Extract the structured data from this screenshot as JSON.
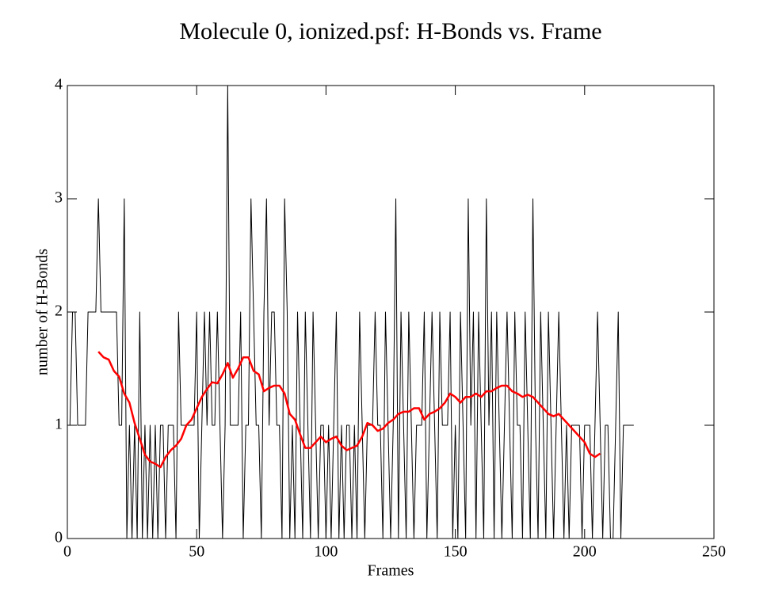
{
  "chart_data": {
    "type": "line",
    "title": "Molecule 0, ionized.psf: H-Bonds vs. Frame",
    "x_label": "Frames",
    "y_label": "number of H-Bonds",
    "xlim": [
      0,
      250
    ],
    "xticks": [
      0,
      50,
      100,
      150,
      200,
      250
    ],
    "ylim": [
      0,
      4
    ],
    "yticks": [
      0,
      1,
      2,
      3,
      4
    ],
    "series": [
      {
        "color": "#000000",
        "x": [
          0,
          1,
          2,
          3,
          4,
          5,
          6,
          7,
          8,
          9,
          10,
          11,
          12,
          13,
          14,
          15,
          16,
          17,
          18,
          19,
          20,
          21,
          22,
          23,
          24,
          25,
          26,
          27,
          28,
          29,
          30,
          31,
          32,
          33,
          34,
          35,
          36,
          37,
          38,
          39,
          40,
          41,
          42,
          43,
          44,
          45,
          46,
          47,
          48,
          49,
          50,
          51,
          52,
          53,
          54,
          55,
          56,
          57,
          58,
          59,
          60,
          61,
          62,
          63,
          64,
          65,
          66,
          67,
          68,
          69,
          70,
          71,
          72,
          73,
          74,
          75,
          76,
          77,
          78,
          79,
          80,
          81,
          82,
          83,
          84,
          85,
          86,
          87,
          88,
          89,
          90,
          91,
          92,
          93,
          94,
          95,
          96,
          97,
          98,
          99,
          100,
          101,
          102,
          103,
          104,
          105,
          106,
          107,
          108,
          109,
          110,
          111,
          112,
          113,
          114,
          115,
          116,
          117,
          118,
          119,
          120,
          121,
          122,
          123,
          124,
          125,
          126,
          127,
          128,
          129,
          130,
          131,
          132,
          133,
          134,
          135,
          136,
          137,
          138,
          139,
          140,
          141,
          142,
          143,
          144,
          145,
          146,
          147,
          148,
          149,
          150,
          151,
          152,
          153,
          154,
          155,
          156,
          157,
          158,
          159,
          160,
          161,
          162,
          163,
          164,
          165,
          166,
          167,
          168,
          169,
          170,
          171,
          172,
          173,
          174,
          175,
          176,
          177,
          178,
          179,
          180,
          181,
          182,
          183,
          184,
          185,
          186,
          187,
          188,
          189,
          190,
          191,
          192,
          193,
          194,
          195,
          196,
          197,
          198,
          199,
          200,
          201,
          202,
          203,
          204,
          205,
          206,
          207,
          208,
          209,
          210,
          211,
          212,
          213,
          214,
          215,
          216,
          217,
          218,
          219
        ],
        "values": [
          1,
          1,
          2,
          2,
          1,
          1,
          1,
          1,
          2,
          2,
          2,
          2,
          3,
          2,
          2,
          2,
          2,
          2,
          2,
          2,
          1,
          1,
          3,
          0,
          1,
          0,
          1,
          0,
          2,
          0,
          1,
          0,
          1,
          0,
          1,
          0,
          1,
          1,
          0,
          1,
          1,
          1,
          0,
          2,
          1,
          1,
          1,
          1,
          1,
          1,
          2,
          0,
          1,
          2,
          1,
          2,
          1,
          1,
          2,
          1,
          0,
          1,
          4,
          1,
          1,
          1,
          1,
          2,
          0,
          1,
          1,
          3,
          2,
          1,
          1,
          0,
          2,
          3,
          1,
          2,
          2,
          1,
          1,
          0,
          3,
          2,
          0,
          1,
          0,
          2,
          1,
          0,
          2,
          1,
          0,
          2,
          1,
          0,
          1,
          1,
          0,
          1,
          0,
          1,
          2,
          0,
          1,
          0,
          1,
          1,
          0,
          1,
          0,
          2,
          1,
          0,
          1,
          1,
          1,
          2,
          1,
          1,
          0,
          2,
          1,
          0,
          1,
          3,
          0,
          2,
          1,
          0,
          2,
          1,
          0,
          1,
          1,
          1,
          2,
          0,
          1,
          2,
          1,
          0,
          2,
          1,
          1,
          1,
          2,
          0,
          1,
          0,
          2,
          1,
          0,
          3,
          1,
          2,
          0,
          2,
          1,
          0,
          3,
          1,
          2,
          0,
          2,
          1,
          0,
          1,
          2,
          1,
          0,
          2,
          1,
          1,
          0,
          2,
          1,
          0,
          3,
          1,
          0,
          2,
          1,
          0,
          2,
          1,
          0,
          1,
          2,
          1,
          0,
          1,
          0,
          1,
          1,
          1,
          1,
          0,
          1,
          1,
          1,
          0,
          1,
          2,
          1,
          0,
          1,
          1,
          0,
          0,
          1,
          2,
          0,
          1,
          1,
          1,
          1,
          1
        ]
      },
      {
        "color": "#ff0000",
        "x": [
          12,
          14,
          16,
          18,
          20,
          22,
          24,
          26,
          28,
          30,
          32,
          34,
          36,
          38,
          40,
          42,
          44,
          46,
          48,
          50,
          52,
          54,
          56,
          58,
          60,
          62,
          64,
          66,
          68,
          70,
          72,
          74,
          76,
          78,
          80,
          82,
          84,
          86,
          88,
          90,
          92,
          94,
          96,
          98,
          100,
          102,
          104,
          106,
          108,
          110,
          112,
          114,
          116,
          118,
          120,
          122,
          124,
          126,
          128,
          130,
          132,
          134,
          136,
          138,
          140,
          142,
          144,
          146,
          148,
          150,
          152,
          154,
          156,
          158,
          160,
          162,
          164,
          166,
          168,
          170,
          172,
          174,
          176,
          178,
          180,
          182,
          184,
          186,
          188,
          190,
          192,
          194,
          196,
          198,
          200,
          202,
          204,
          206
        ],
        "values": [
          1.65,
          1.6,
          1.58,
          1.48,
          1.43,
          1.28,
          1.2,
          1.02,
          0.88,
          0.74,
          0.68,
          0.66,
          0.63,
          0.72,
          0.78,
          0.82,
          0.88,
          1.0,
          1.05,
          1.15,
          1.25,
          1.32,
          1.38,
          1.37,
          1.45,
          1.55,
          1.42,
          1.5,
          1.6,
          1.6,
          1.48,
          1.45,
          1.3,
          1.33,
          1.35,
          1.35,
          1.28,
          1.1,
          1.05,
          0.92,
          0.8,
          0.8,
          0.85,
          0.9,
          0.85,
          0.88,
          0.9,
          0.82,
          0.78,
          0.8,
          0.82,
          0.9,
          1.02,
          1.0,
          0.95,
          0.97,
          1.02,
          1.05,
          1.1,
          1.12,
          1.12,
          1.15,
          1.15,
          1.05,
          1.1,
          1.12,
          1.15,
          1.2,
          1.28,
          1.25,
          1.2,
          1.25,
          1.25,
          1.28,
          1.25,
          1.3,
          1.3,
          1.33,
          1.35,
          1.35,
          1.3,
          1.28,
          1.25,
          1.27,
          1.25,
          1.2,
          1.15,
          1.1,
          1.08,
          1.1,
          1.05,
          1.0,
          0.95,
          0.9,
          0.85,
          0.75,
          0.72,
          0.75
        ]
      }
    ]
  }
}
